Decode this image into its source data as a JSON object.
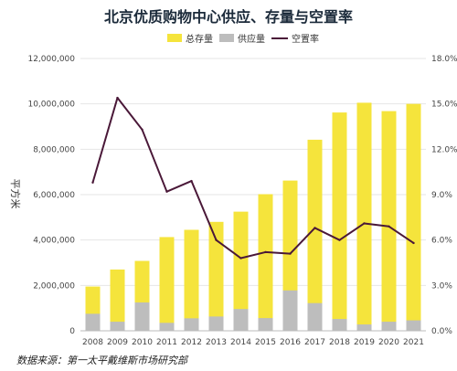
{
  "chart_data": {
    "type": "bar",
    "title": "北京优质购物中心供应、存量与空置率",
    "ylabel": "平方米",
    "source": "数据来源：第一太平戴维斯市场研究部",
    "categories": [
      "2008",
      "2009",
      "2010",
      "2011",
      "2012",
      "2013",
      "2014",
      "2015",
      "2016",
      "2017",
      "2018",
      "2019",
      "2020",
      "2021"
    ],
    "series": [
      {
        "name": "总存量",
        "kind": "bar",
        "axis": "left",
        "color": "#f5e43c",
        "values": [
          1950000,
          2700000,
          3080000,
          4130000,
          4450000,
          4800000,
          5250000,
          6020000,
          6620000,
          8420000,
          9620000,
          10050000,
          9680000,
          10000000
        ]
      },
      {
        "name": "供应量",
        "kind": "bar",
        "axis": "left",
        "color": "#bdbdbd",
        "values": [
          750000,
          400000,
          1250000,
          350000,
          550000,
          630000,
          960000,
          560000,
          1780000,
          1220000,
          520000,
          280000,
          400000,
          460000
        ]
      },
      {
        "name": "空置率",
        "kind": "line",
        "axis": "right",
        "color": "#4a1838",
        "values": [
          9.8,
          15.4,
          13.3,
          9.2,
          9.9,
          6.0,
          4.8,
          5.2,
          5.1,
          6.8,
          6.0,
          7.1,
          6.9,
          5.8
        ]
      }
    ],
    "yleft": {
      "min": 0,
      "max": 12000000,
      "step": 2000000,
      "ticks": [
        "0",
        "2,000,000",
        "4,000,000",
        "6,000,000",
        "8,000,000",
        "10,000,000",
        "12,000,000"
      ]
    },
    "yright": {
      "min": 0,
      "max": 18,
      "step": 3,
      "ticks": [
        "0.0%",
        "3.0%",
        "6.0%",
        "9.0%",
        "12.0%",
        "15.0%",
        "18.0%"
      ]
    },
    "grid": true,
    "legend_position": "top-center"
  }
}
